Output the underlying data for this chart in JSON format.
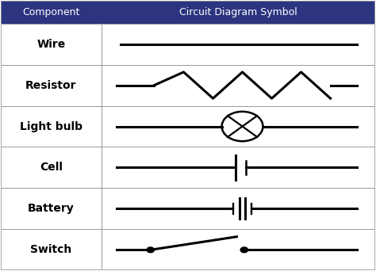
{
  "header_bg": "#2d3580",
  "header_text_color": "#ffffff",
  "row_bg": "#ffffff",
  "border_color": "#999999",
  "text_color": "#000000",
  "symbol_color": "#000000",
  "col1_header": "Component",
  "col2_header": "Circuit Diagram Symbol",
  "components": [
    "Wire",
    "Resistor",
    "Light bulb",
    "Cell",
    "Battery",
    "Switch"
  ],
  "fig_bg": "#ffffff",
  "header_fontsize": 9,
  "component_fontsize": 10,
  "col_split": 0.27
}
